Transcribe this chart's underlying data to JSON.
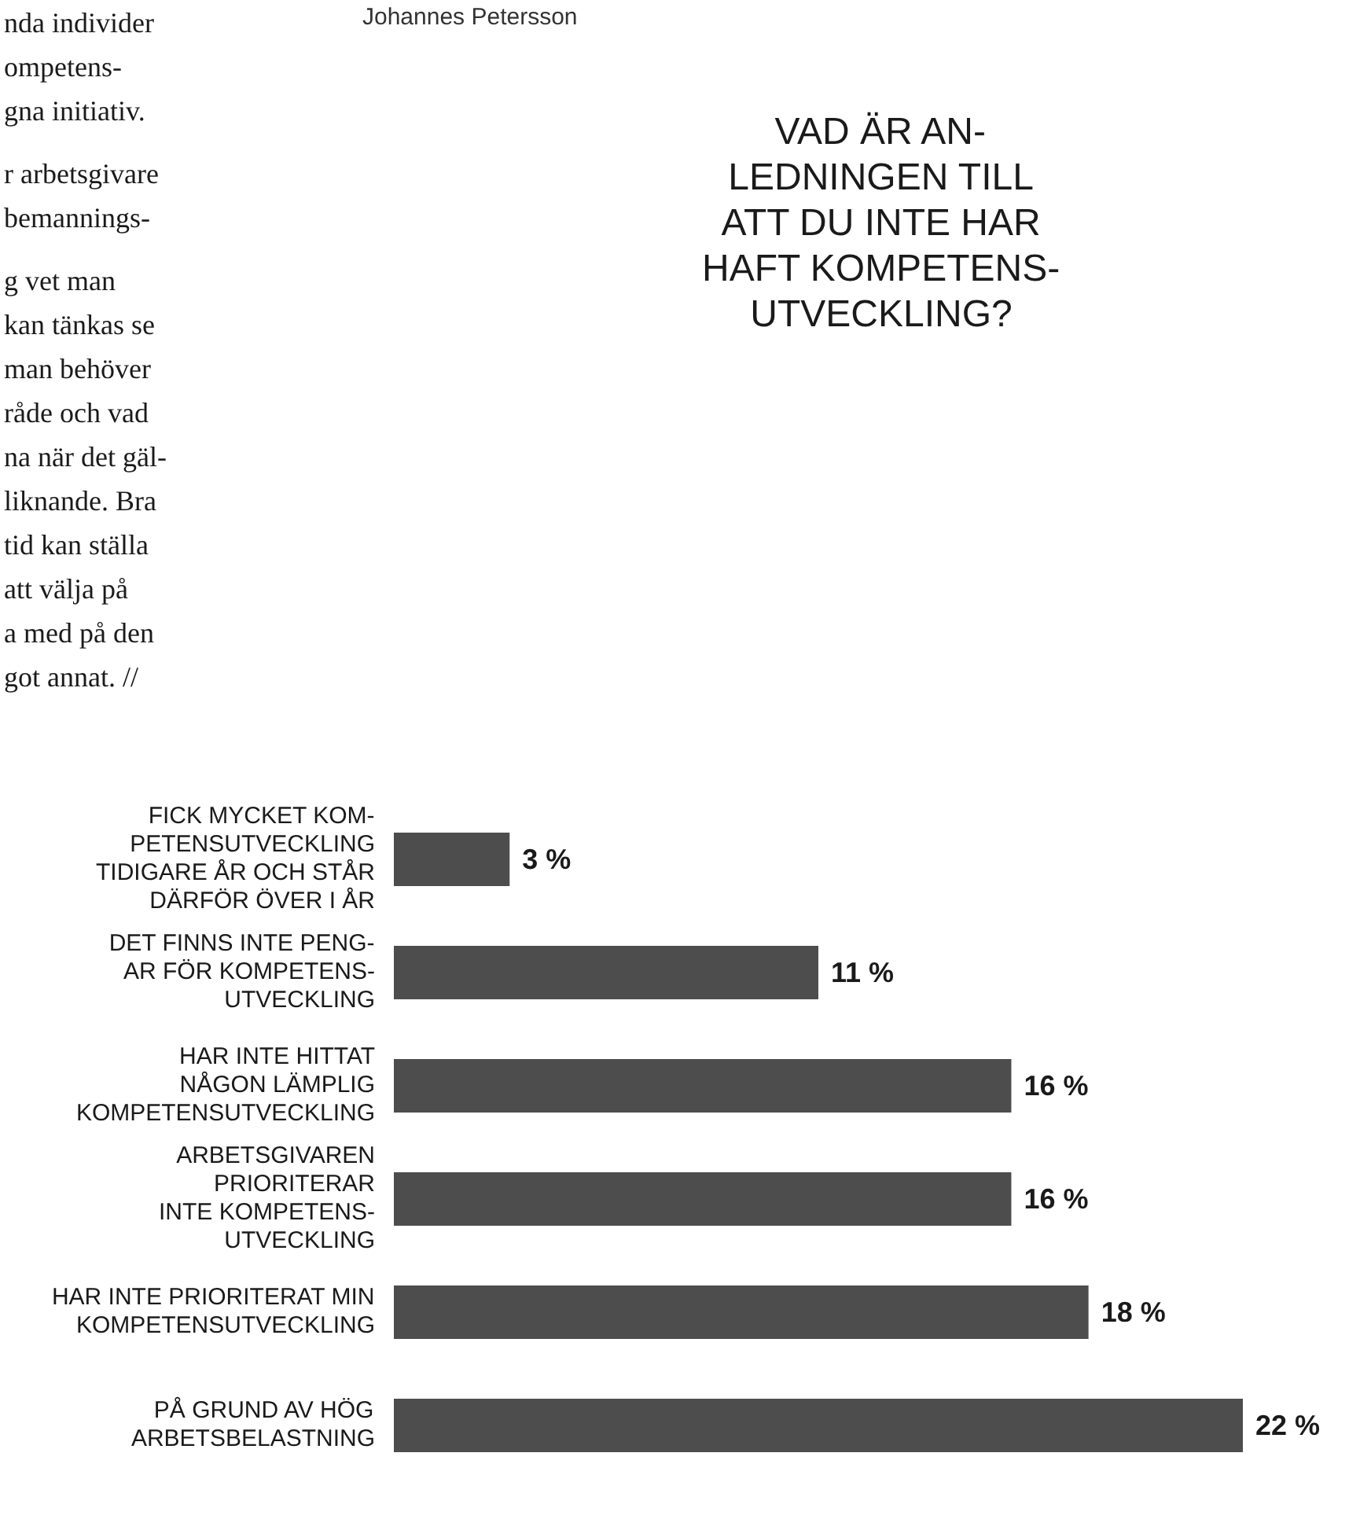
{
  "chart_data": {
    "type": "bar",
    "title": "VAD ÄR AN-\nLEDNINGEN TILL\nATT DU INTE HAR\nHAFT KOMPETENS-\nUTVECKLING?",
    "categories": [
      "FICK MYCKET KOM-\nPETENSUTVECKLING\nTIDIGARE ÅR OCH STÅR\nDÄRFÖR ÖVER I ÅR",
      "DET FINNS INTE PENG-\nAR FÖR KOMPETENS-\nUTVECKLING",
      "HAR INTE HITTAT\nNÅGON LÄMPLIG\nKOMPETENSUTVECKLING",
      "ARBETSGIVAREN\nPRIORITERAR\nINTE KOMPETENS-\nUTVECKLING",
      "HAR INTE PRIORITERAT MIN\nKOMPETENSUTVECKLING",
      "PÅ GRUND AV HÖG\nARBETSBELASTNING"
    ],
    "values": [
      3,
      11,
      16,
      16,
      18,
      22
    ],
    "value_labels": [
      "3 %",
      "11 %",
      "16 %",
      "16 %",
      "18 %",
      "22 %"
    ],
    "color": "#4d4d4d",
    "orientation": "horizontal",
    "annotations": [
      "Johannes Petersson",
      "nda individer\nompetens-\ngna initiativ.\n\nr arbetsgivare\nbemannings-\n\ng vet man\nkan tänkas se\nman behöver\nråde och vad\nna när det gäl-\nliknande. Bra\ntid kan ställa\natt välja på\na med på den\ngot annat. //"
    ]
  }
}
